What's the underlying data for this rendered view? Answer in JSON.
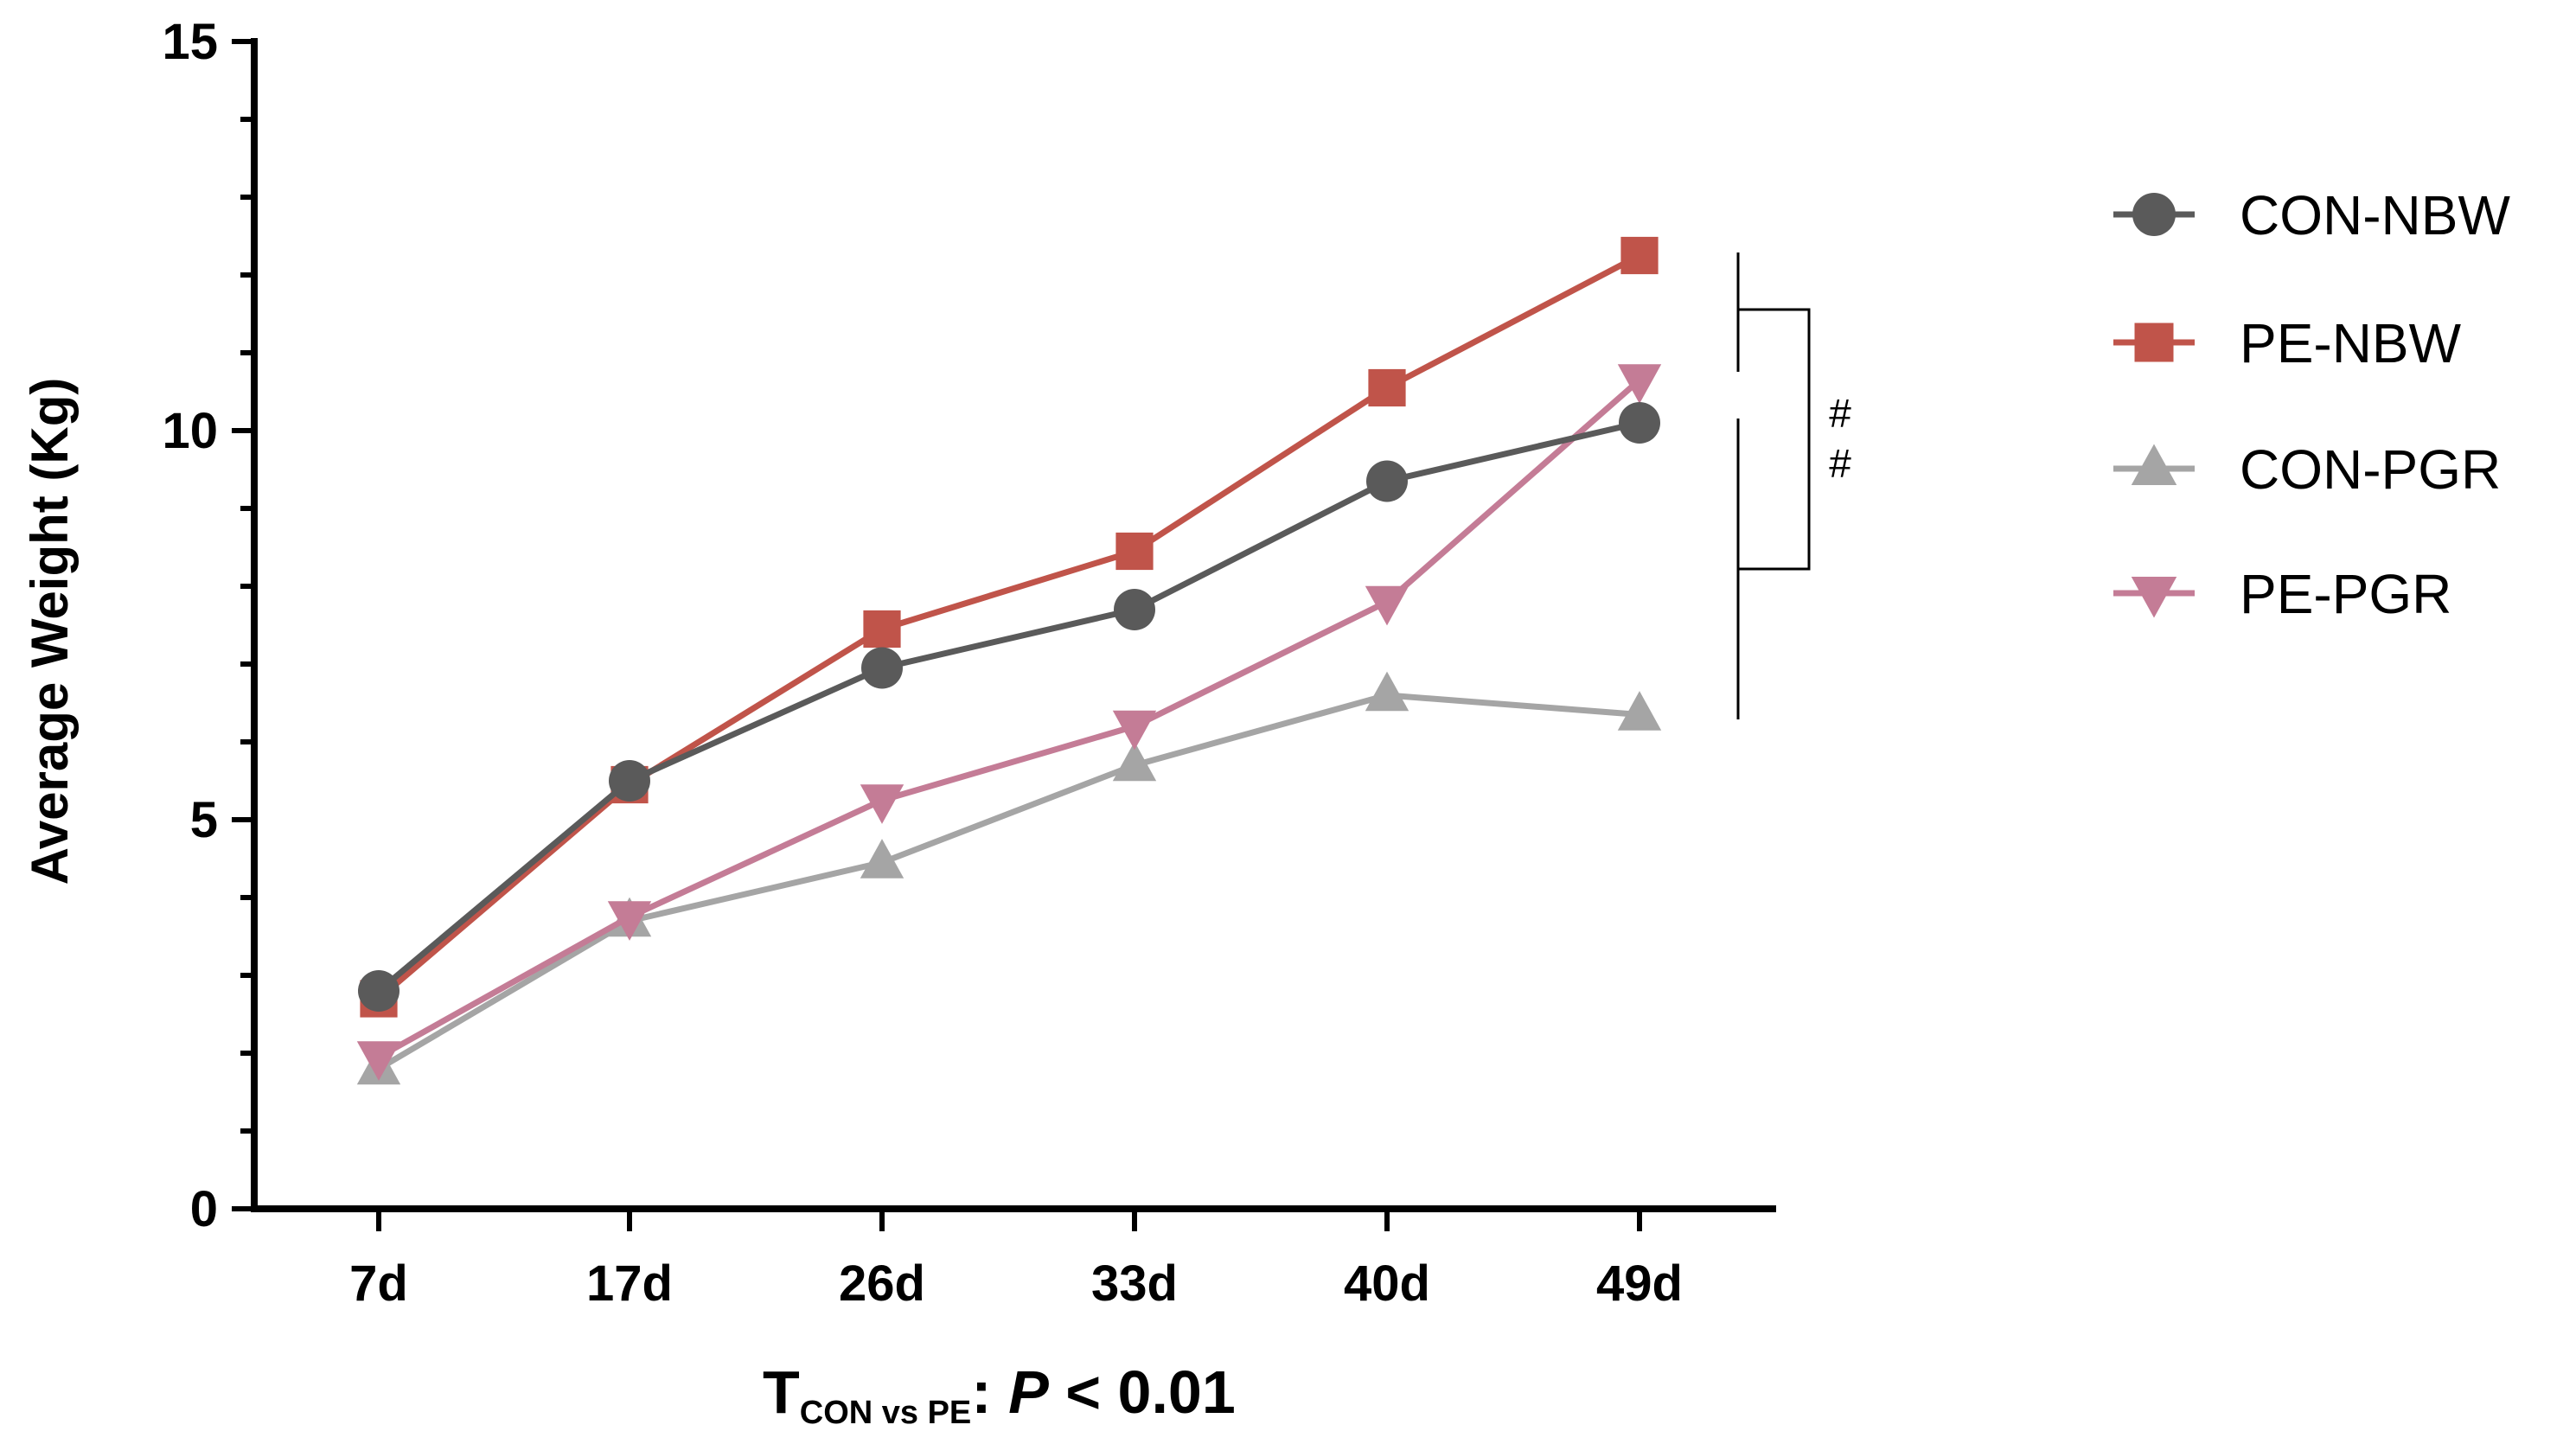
{
  "chart_data": {
    "type": "line",
    "title": "",
    "xlabel": "",
    "ylabel": "Average Weight (Kg)",
    "ylim": [
      0,
      15
    ],
    "yticks": [
      0,
      5,
      10,
      15
    ],
    "categories": [
      "7d",
      "17d",
      "26d",
      "33d",
      "40d",
      "49d"
    ],
    "series": [
      {
        "name": "CON-NBW",
        "marker": "circle",
        "color": "#5a5a5a",
        "values": [
          2.8,
          5.5,
          6.95,
          7.7,
          9.35,
          10.1
        ]
      },
      {
        "name": "PE-NBW",
        "marker": "square",
        "color": "#c0544a",
        "values": [
          2.7,
          5.45,
          7.45,
          8.45,
          10.55,
          12.25
        ]
      },
      {
        "name": "CON-PGR",
        "marker": "triangle-up",
        "color": "#a5a5a5",
        "values": [
          1.8,
          3.7,
          4.45,
          5.7,
          6.6,
          6.35
        ]
      },
      {
        "name": "PE-PGR",
        "marker": "triangle-down",
        "color": "#c47c96",
        "values": [
          1.95,
          3.75,
          5.25,
          6.2,
          7.8,
          10.65
        ]
      }
    ],
    "annotations": {
      "significance_marks": [
        "#",
        "#"
      ],
      "footnote": {
        "main": "T",
        "subscript": "CON vs PE",
        "separator": ": ",
        "p_label": "P",
        "p_value": " < 0.01"
      }
    },
    "legend_position": "right"
  }
}
